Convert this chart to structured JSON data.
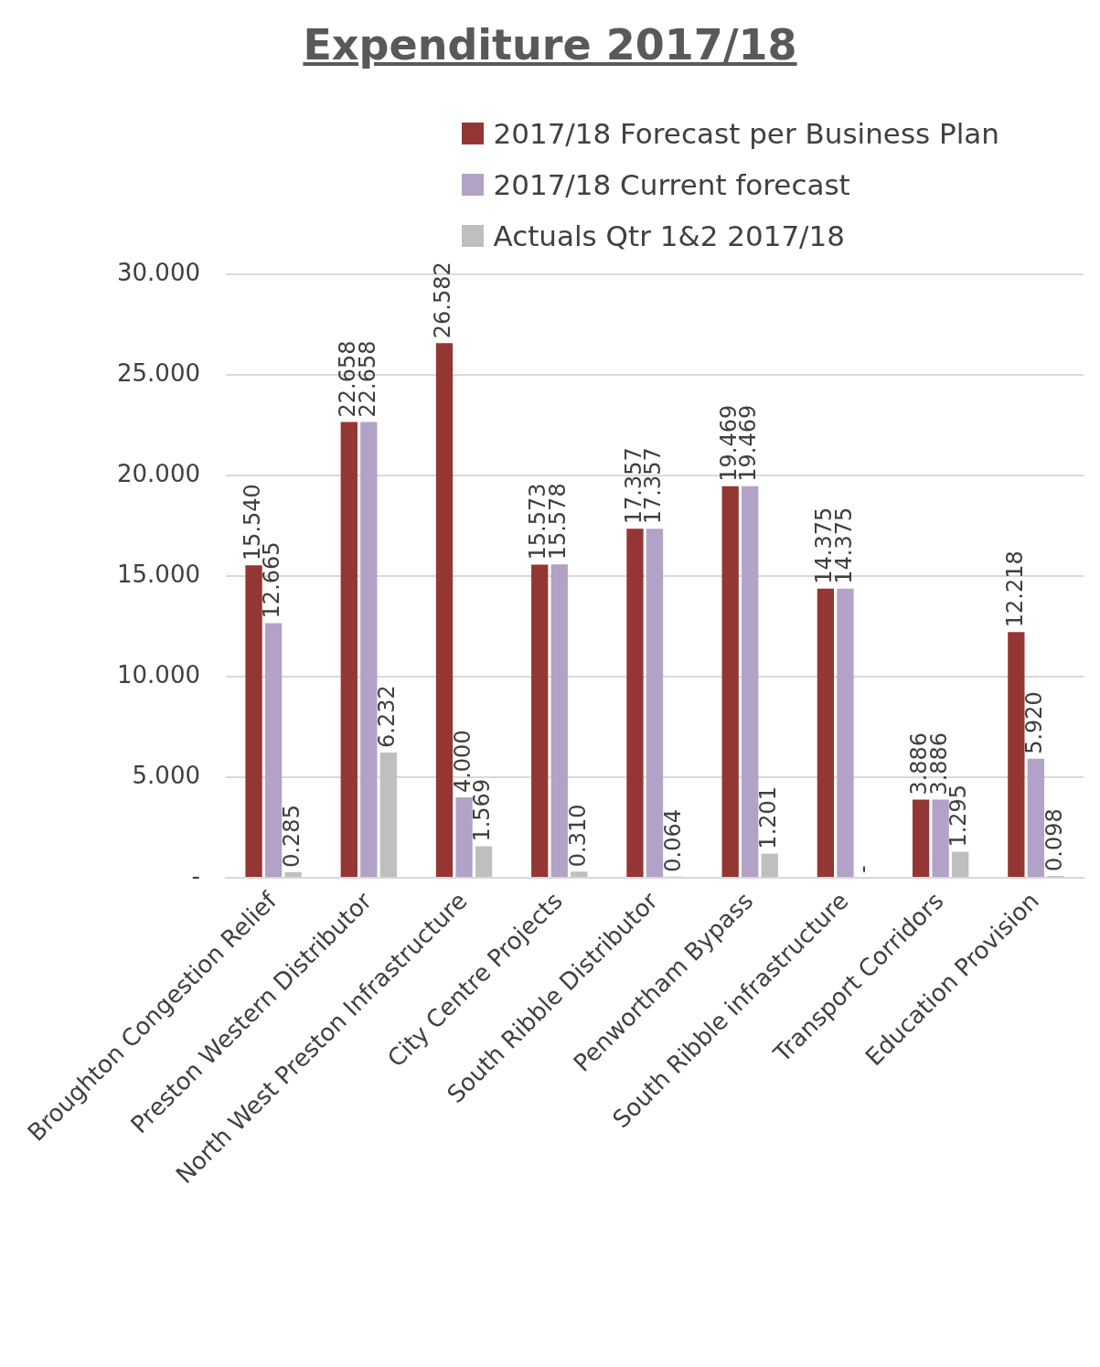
{
  "chart_data": {
    "type": "bar",
    "title": "Expenditure 2017/18",
    "categories": [
      "Broughton Congestion Relief",
      "Preston Western Distributor",
      "North West Preston Infrastructure",
      "City Centre Projects",
      "South Ribble Distributor",
      "Penwortham Bypass",
      "South Ribble infrastructure",
      "Transport Corridors",
      "Education Provision"
    ],
    "series": [
      {
        "name": "2017/18 Forecast per Business Plan",
        "color": "#943634",
        "values": [
          15.54,
          22.658,
          26.582,
          15.573,
          17.357,
          19.469,
          14.375,
          3.886,
          12.218
        ],
        "value_labels": [
          "15.540",
          "22.658",
          "26.582",
          "15.573",
          "17.357",
          "19.469",
          "14.375",
          "3.886",
          "12.218"
        ]
      },
      {
        "name": "2017/18 Current forecast",
        "color": "#b3a2c7",
        "values": [
          12.665,
          22.658,
          4.0,
          15.578,
          17.357,
          19.469,
          14.375,
          3.886,
          5.92
        ],
        "value_labels": [
          "12.665",
          "22.658",
          "4.000",
          "15.578",
          "17.357",
          "19.469",
          "14.375",
          "3.886",
          "5.920"
        ]
      },
      {
        "name": "Actuals Qtr 1&2 2017/18",
        "color": "#bfbfbf",
        "values": [
          0.285,
          6.232,
          1.569,
          0.31,
          0.064,
          1.201,
          0,
          1.295,
          0.098
        ],
        "value_labels": [
          "0.285",
          "6.232",
          "1.569",
          "0.310",
          "0.064",
          "1.201",
          "-",
          "1.295",
          "0.098"
        ]
      }
    ],
    "ylim": [
      0,
      30
    ],
    "yticks": [
      {
        "value": 0,
        "label": "-"
      },
      {
        "value": 5,
        "label": "5.000"
      },
      {
        "value": 10,
        "label": "10.000"
      },
      {
        "value": 15,
        "label": "15.000"
      },
      {
        "value": 20,
        "label": "20.000"
      },
      {
        "value": 25,
        "label": "25.000"
      },
      {
        "value": 30,
        "label": "30.000"
      }
    ],
    "grid": "y",
    "legend": "top right"
  }
}
